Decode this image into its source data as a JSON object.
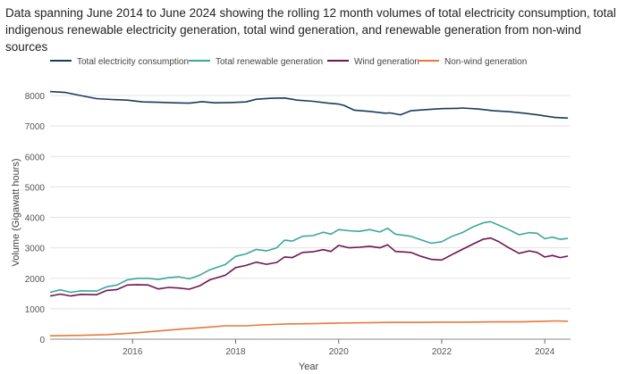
{
  "chart_data": {
    "type": "line",
    "title": "Data spanning June 2014 to June 2024 showing the rolling 12 month volumes of total electricity consumption, total indigenous renewable electricity generation, total wind generation, and renewable generation from non-wind sources",
    "xlabel": "Year",
    "ylabel": "Volume (Gigawatt hours)",
    "xlim": [
      2014.4,
      2024.5
    ],
    "ylim": [
      0,
      8500
    ],
    "x_ticks": [
      2016,
      2018,
      2020,
      2022,
      2024
    ],
    "y_ticks": [
      0,
      1000,
      2000,
      3000,
      4000,
      5000,
      6000,
      7000,
      8000
    ],
    "grid": "horizontal",
    "legend_position": "top",
    "series": [
      {
        "name": "Total electricity consumption",
        "color": "#1b3a5c",
        "points": [
          [
            2014.4,
            8130
          ],
          [
            2014.7,
            8100
          ],
          [
            2015.0,
            8000
          ],
          [
            2015.3,
            7900
          ],
          [
            2015.6,
            7870
          ],
          [
            2015.9,
            7850
          ],
          [
            2016.2,
            7790
          ],
          [
            2016.5,
            7780
          ],
          [
            2016.8,
            7760
          ],
          [
            2017.1,
            7750
          ],
          [
            2017.35,
            7800
          ],
          [
            2017.6,
            7760
          ],
          [
            2017.9,
            7770
          ],
          [
            2018.2,
            7790
          ],
          [
            2018.4,
            7880
          ],
          [
            2018.7,
            7910
          ],
          [
            2018.95,
            7920
          ],
          [
            2019.2,
            7850
          ],
          [
            2019.5,
            7810
          ],
          [
            2019.8,
            7750
          ],
          [
            2020.0,
            7720
          ],
          [
            2020.1,
            7680
          ],
          [
            2020.3,
            7520
          ],
          [
            2020.6,
            7480
          ],
          [
            2020.9,
            7420
          ],
          [
            2021.0,
            7430
          ],
          [
            2021.2,
            7370
          ],
          [
            2021.4,
            7500
          ],
          [
            2021.7,
            7540
          ],
          [
            2022.0,
            7570
          ],
          [
            2022.3,
            7580
          ],
          [
            2022.4,
            7590
          ],
          [
            2022.7,
            7560
          ],
          [
            2023.0,
            7500
          ],
          [
            2023.3,
            7470
          ],
          [
            2023.6,
            7420
          ],
          [
            2023.9,
            7360
          ],
          [
            2024.0,
            7330
          ],
          [
            2024.2,
            7280
          ],
          [
            2024.45,
            7260
          ]
        ]
      },
      {
        "name": "Total renewable generation",
        "color": "#3aa89a",
        "points": [
          [
            2014.4,
            1540
          ],
          [
            2014.6,
            1620
          ],
          [
            2014.8,
            1540
          ],
          [
            2015.0,
            1590
          ],
          [
            2015.3,
            1580
          ],
          [
            2015.5,
            1720
          ],
          [
            2015.7,
            1780
          ],
          [
            2015.9,
            1950
          ],
          [
            2016.1,
            2000
          ],
          [
            2016.3,
            2000
          ],
          [
            2016.5,
            1960
          ],
          [
            2016.7,
            2020
          ],
          [
            2016.9,
            2050
          ],
          [
            2017.1,
            1980
          ],
          [
            2017.3,
            2100
          ],
          [
            2017.5,
            2280
          ],
          [
            2017.8,
            2450
          ],
          [
            2018.0,
            2720
          ],
          [
            2018.2,
            2800
          ],
          [
            2018.4,
            2950
          ],
          [
            2018.6,
            2900
          ],
          [
            2018.8,
            3000
          ],
          [
            2018.95,
            3250
          ],
          [
            2019.1,
            3220
          ],
          [
            2019.3,
            3380
          ],
          [
            2019.5,
            3400
          ],
          [
            2019.7,
            3510
          ],
          [
            2019.85,
            3450
          ],
          [
            2020.0,
            3600
          ],
          [
            2020.2,
            3560
          ],
          [
            2020.4,
            3540
          ],
          [
            2020.6,
            3600
          ],
          [
            2020.8,
            3520
          ],
          [
            2020.95,
            3640
          ],
          [
            2021.1,
            3450
          ],
          [
            2021.4,
            3380
          ],
          [
            2021.6,
            3260
          ],
          [
            2021.8,
            3150
          ],
          [
            2022.0,
            3200
          ],
          [
            2022.2,
            3380
          ],
          [
            2022.4,
            3500
          ],
          [
            2022.6,
            3680
          ],
          [
            2022.8,
            3820
          ],
          [
            2022.95,
            3860
          ],
          [
            2023.1,
            3750
          ],
          [
            2023.3,
            3600
          ],
          [
            2023.5,
            3430
          ],
          [
            2023.7,
            3500
          ],
          [
            2023.85,
            3480
          ],
          [
            2024.0,
            3300
          ],
          [
            2024.15,
            3350
          ],
          [
            2024.3,
            3280
          ],
          [
            2024.45,
            3310
          ]
        ]
      },
      {
        "name": "Wind generation",
        "color": "#6e1650",
        "points": [
          [
            2014.4,
            1420
          ],
          [
            2014.6,
            1480
          ],
          [
            2014.8,
            1420
          ],
          [
            2015.0,
            1470
          ],
          [
            2015.3,
            1460
          ],
          [
            2015.5,
            1600
          ],
          [
            2015.7,
            1630
          ],
          [
            2015.9,
            1780
          ],
          [
            2016.1,
            1790
          ],
          [
            2016.3,
            1780
          ],
          [
            2016.5,
            1650
          ],
          [
            2016.7,
            1700
          ],
          [
            2016.9,
            1680
          ],
          [
            2017.1,
            1640
          ],
          [
            2017.3,
            1750
          ],
          [
            2017.5,
            1950
          ],
          [
            2017.8,
            2100
          ],
          [
            2018.0,
            2350
          ],
          [
            2018.2,
            2420
          ],
          [
            2018.4,
            2530
          ],
          [
            2018.6,
            2460
          ],
          [
            2018.8,
            2520
          ],
          [
            2018.95,
            2700
          ],
          [
            2019.1,
            2680
          ],
          [
            2019.3,
            2850
          ],
          [
            2019.5,
            2870
          ],
          [
            2019.7,
            2940
          ],
          [
            2019.85,
            2880
          ],
          [
            2020.0,
            3080
          ],
          [
            2020.2,
            3000
          ],
          [
            2020.4,
            3020
          ],
          [
            2020.6,
            3050
          ],
          [
            2020.8,
            3000
          ],
          [
            2020.95,
            3100
          ],
          [
            2021.1,
            2880
          ],
          [
            2021.4,
            2850
          ],
          [
            2021.6,
            2720
          ],
          [
            2021.8,
            2620
          ],
          [
            2022.0,
            2600
          ],
          [
            2022.2,
            2780
          ],
          [
            2022.4,
            2950
          ],
          [
            2022.6,
            3120
          ],
          [
            2022.8,
            3280
          ],
          [
            2022.95,
            3320
          ],
          [
            2023.1,
            3210
          ],
          [
            2023.3,
            3000
          ],
          [
            2023.5,
            2820
          ],
          [
            2023.7,
            2900
          ],
          [
            2023.85,
            2850
          ],
          [
            2024.0,
            2700
          ],
          [
            2024.15,
            2750
          ],
          [
            2024.3,
            2680
          ],
          [
            2024.45,
            2730
          ]
        ]
      },
      {
        "name": "Non-wind generation",
        "color": "#e8783a",
        "points": [
          [
            2014.4,
            110
          ],
          [
            2015.0,
            125
          ],
          [
            2015.5,
            150
          ],
          [
            2016.0,
            200
          ],
          [
            2016.5,
            270
          ],
          [
            2017.0,
            340
          ],
          [
            2017.5,
            400
          ],
          [
            2017.8,
            440
          ],
          [
            2018.2,
            440
          ],
          [
            2018.5,
            470
          ],
          [
            2019.0,
            500
          ],
          [
            2019.5,
            510
          ],
          [
            2020.0,
            530
          ],
          [
            2020.5,
            540
          ],
          [
            2021.0,
            550
          ],
          [
            2021.5,
            550
          ],
          [
            2022.0,
            560
          ],
          [
            2022.5,
            560
          ],
          [
            2023.0,
            570
          ],
          [
            2023.5,
            570
          ],
          [
            2024.0,
            590
          ],
          [
            2024.2,
            600
          ],
          [
            2024.45,
            590
          ]
        ]
      }
    ]
  }
}
